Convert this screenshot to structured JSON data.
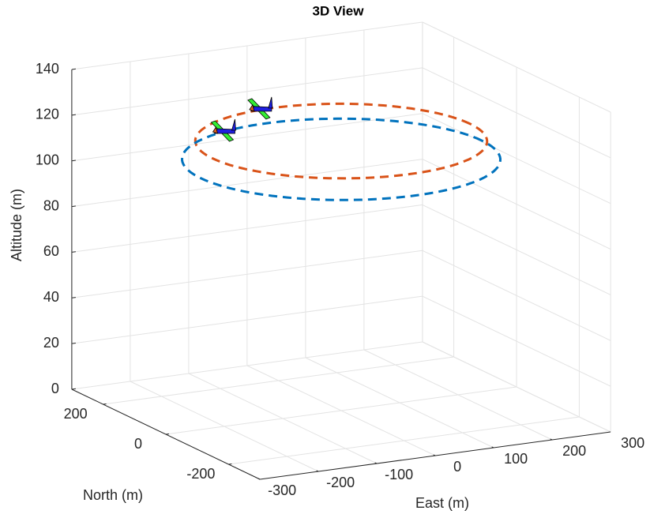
{
  "chart_data": {
    "type": "3d-circle",
    "title": "3D View",
    "xlabel": "East (m)",
    "ylabel": "North (m)",
    "zlabel": "Altitude (m)",
    "xlim": [
      -300,
      300
    ],
    "xticks": [
      -300,
      -200,
      -100,
      0,
      100,
      200,
      300
    ],
    "ylim": [
      -300,
      300
    ],
    "yticks": [
      -200,
      0,
      200
    ],
    "zlim": [
      0,
      140
    ],
    "zticks": [
      0,
      20,
      40,
      60,
      80,
      100,
      120,
      140
    ],
    "grid": true,
    "series": [
      {
        "color": "#D95319",
        "center_east": 0,
        "center_north": 0,
        "radius": 220,
        "altitude": 118,
        "aircraft": [
          -20,
          220,
          118
        ]
      },
      {
        "color": "#0072BD",
        "center_east": 0,
        "center_north": 0,
        "radius": 240,
        "altitude": 110,
        "aircraft": [
          -80,
          225,
          110
        ]
      }
    ]
  }
}
